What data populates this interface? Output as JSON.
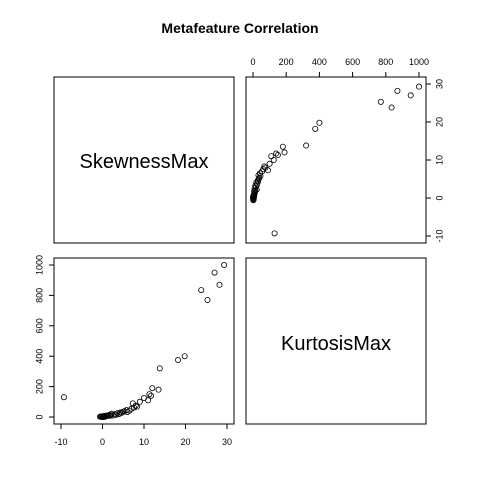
{
  "chart_data": {
    "type": "scatter",
    "title": "Metafeature Correlation",
    "variables": [
      "SkewnessMax",
      "KurtosisMax"
    ],
    "axes": {
      "SkewnessMax": {
        "range": [
          -10,
          30
        ],
        "ticks": [
          "-10",
          "0",
          "10",
          "20",
          "30"
        ]
      },
      "KurtosisMax": {
        "range": [
          0,
          1000
        ],
        "ticks": [
          "0",
          "200",
          "400",
          "600",
          "800",
          "1000"
        ]
      }
    },
    "grid": false,
    "legend": "none",
    "points": [
      {
        "x": -9.3,
        "y": 130
      },
      {
        "x": -0.6,
        "y": 2
      },
      {
        "x": -0.4,
        "y": 4
      },
      {
        "x": -0.2,
        "y": 1
      },
      {
        "x": 0.0,
        "y": 0
      },
      {
        "x": 0.1,
        "y": 3
      },
      {
        "x": 0.2,
        "y": 6
      },
      {
        "x": 0.3,
        "y": 2
      },
      {
        "x": 0.4,
        "y": 5
      },
      {
        "x": 0.5,
        "y": 1
      },
      {
        "x": 0.6,
        "y": 4
      },
      {
        "x": 0.8,
        "y": 8
      },
      {
        "x": 1.0,
        "y": 6
      },
      {
        "x": 1.2,
        "y": 9
      },
      {
        "x": 1.5,
        "y": 12
      },
      {
        "x": 1.8,
        "y": 7
      },
      {
        "x": 2.0,
        "y": 14
      },
      {
        "x": 2.2,
        "y": 22
      },
      {
        "x": 2.6,
        "y": 10
      },
      {
        "x": 3.0,
        "y": 18
      },
      {
        "x": 3.3,
        "y": 15
      },
      {
        "x": 3.6,
        "y": 25
      },
      {
        "x": 4.0,
        "y": 20
      },
      {
        "x": 4.3,
        "y": 30
      },
      {
        "x": 4.6,
        "y": 28
      },
      {
        "x": 5.0,
        "y": 35
      },
      {
        "x": 5.3,
        "y": 38
      },
      {
        "x": 5.8,
        "y": 45
      },
      {
        "x": 6.0,
        "y": 33
      },
      {
        "x": 6.5,
        "y": 42
      },
      {
        "x": 7.0,
        "y": 55
      },
      {
        "x": 7.3,
        "y": 90
      },
      {
        "x": 7.6,
        "y": 62
      },
      {
        "x": 8.0,
        "y": 75
      },
      {
        "x": 8.3,
        "y": 68
      },
      {
        "x": 9.0,
        "y": 100
      },
      {
        "x": 10.0,
        "y": 125
      },
      {
        "x": 11.0,
        "y": 110
      },
      {
        "x": 11.3,
        "y": 150
      },
      {
        "x": 11.7,
        "y": 140
      },
      {
        "x": 12.0,
        "y": 190
      },
      {
        "x": 13.5,
        "y": 180
      },
      {
        "x": 13.8,
        "y": 320
      },
      {
        "x": 18.2,
        "y": 375
      },
      {
        "x": 19.8,
        "y": 400
      },
      {
        "x": 23.8,
        "y": 835
      },
      {
        "x": 25.3,
        "y": 770
      },
      {
        "x": 27.0,
        "y": 950
      },
      {
        "x": 28.2,
        "y": 870
      },
      {
        "x": 29.3,
        "y": 1000
      }
    ]
  }
}
